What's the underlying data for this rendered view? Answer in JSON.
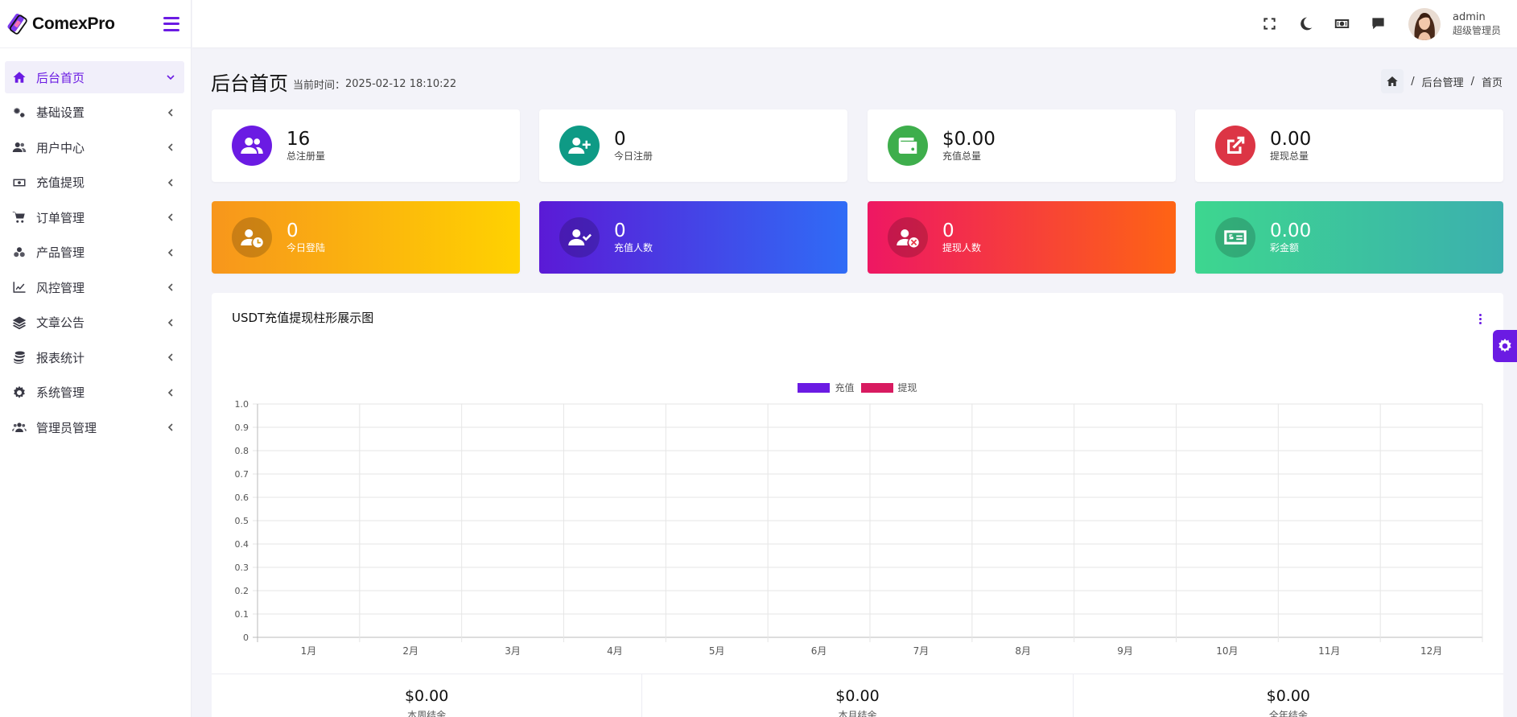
{
  "app": {
    "name": "ComexPro"
  },
  "sidebar": {
    "items": [
      {
        "label": "后台首页",
        "icon": "home-icon",
        "active": true
      },
      {
        "label": "基础设置",
        "icon": "gears-icon"
      },
      {
        "label": "用户中心",
        "icon": "users-icon"
      },
      {
        "label": "充值提现",
        "icon": "money-icon"
      },
      {
        "label": "订单管理",
        "icon": "cart-icon"
      },
      {
        "label": "产品管理",
        "icon": "boxes-icon"
      },
      {
        "label": "风控管理",
        "icon": "line-chart-icon"
      },
      {
        "label": "文章公告",
        "icon": "layers-icon"
      },
      {
        "label": "报表统计",
        "icon": "coins-icon"
      },
      {
        "label": "系统管理",
        "icon": "gear-icon"
      },
      {
        "label": "管理员管理",
        "icon": "user-group-icon"
      }
    ]
  },
  "header": {
    "icons": [
      "fullscreen-icon",
      "moon-icon",
      "cash-icon",
      "chat-icon"
    ],
    "user": {
      "name": "admin",
      "role": "超级管理员"
    }
  },
  "page": {
    "title": "后台首页",
    "time_label": "当前时间：",
    "time": "2025-02-12 18:10:22",
    "breadcrumb": [
      "后台管理",
      "首页"
    ]
  },
  "stats_row1": [
    {
      "value": "16",
      "label": "总注册量",
      "icon": "users-icon",
      "color": "#6b1be3"
    },
    {
      "value": "0",
      "label": "今日注册",
      "icon": "user-plus-icon",
      "color": "#0e9a85"
    },
    {
      "value": "$0.00",
      "label": "充值总量",
      "icon": "wallet-icon",
      "color": "#3eae4c"
    },
    {
      "value": "0.00",
      "label": "提现总量",
      "icon": "external-link-icon",
      "color": "#dc3545"
    }
  ],
  "stats_row2": [
    {
      "value": "0",
      "label": "今日登陆",
      "icon": "user-clock-icon"
    },
    {
      "value": "0",
      "label": "充值人数",
      "icon": "user-check-icon"
    },
    {
      "value": "0",
      "label": "提现人数",
      "icon": "user-times-icon"
    },
    {
      "value": "0.00",
      "label": "彩金额",
      "icon": "money-check-icon"
    }
  ],
  "panel": {
    "title": "USDT充值提现柱形展示图"
  },
  "chart_data": {
    "type": "bar",
    "categories": [
      "1月",
      "2月",
      "3月",
      "4月",
      "5月",
      "6月",
      "7月",
      "8月",
      "9月",
      "10月",
      "11月",
      "12月"
    ],
    "series": [
      {
        "name": "充值",
        "color": "#6b1be3",
        "values": [
          0,
          0,
          0,
          0,
          0,
          0,
          0,
          0,
          0,
          0,
          0,
          0
        ]
      },
      {
        "name": "提现",
        "color": "#d81b60",
        "values": [
          0,
          0,
          0,
          0,
          0,
          0,
          0,
          0,
          0,
          0,
          0,
          0
        ]
      }
    ],
    "yticks": [
      "1.0",
      "0.9",
      "0.8",
      "0.7",
      "0.6",
      "0.5",
      "0.4",
      "0.3",
      "0.2",
      "0.1",
      "0"
    ],
    "ylim": [
      0,
      1
    ],
    "grid": true,
    "legend": "top-center"
  },
  "summary": [
    {
      "value": "$0.00",
      "label": "本周结余"
    },
    {
      "value": "$0.00",
      "label": "本月结余"
    },
    {
      "value": "$0.00",
      "label": "全年结余"
    }
  ]
}
